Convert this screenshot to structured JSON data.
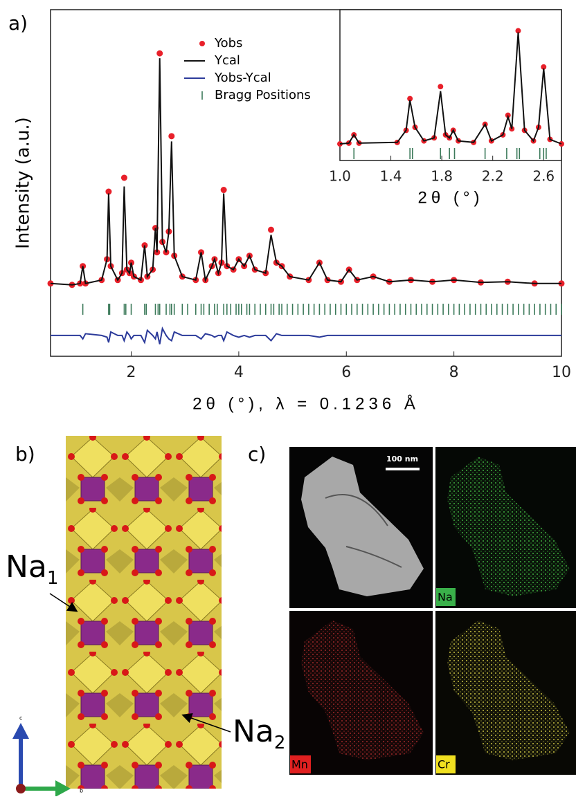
{
  "chart_data": [
    {
      "type": "line",
      "xlabel": "2θ (°), λ = 0.1236 Å",
      "ylabel": "Intensity (a.u.)",
      "xlim": [
        0.5,
        10
      ],
      "ylim": [
        0,
        100
      ],
      "xticks": [
        2,
        4,
        6,
        8,
        10
      ],
      "legend": "upper center",
      "x": [
        0.5,
        0.9,
        1.05,
        1.1,
        1.15,
        1.45,
        1.55,
        1.58,
        1.62,
        1.75,
        1.83,
        1.87,
        1.92,
        1.97,
        2.0,
        2.05,
        2.18,
        2.25,
        2.3,
        2.4,
        2.45,
        2.48,
        2.53,
        2.58,
        2.65,
        2.7,
        2.75,
        2.8,
        2.95,
        3.2,
        3.3,
        3.38,
        3.5,
        3.55,
        3.62,
        3.68,
        3.72,
        3.78,
        3.9,
        4.0,
        4.1,
        4.2,
        4.3,
        4.5,
        4.6,
        4.7,
        4.8,
        4.95,
        5.3,
        5.5,
        5.65,
        5.9,
        6.05,
        6.2,
        6.5,
        6.8,
        7.2,
        7.6,
        8.0,
        8.5,
        9.0,
        9.5,
        10
      ],
      "series": [
        {
          "name": "Yobs",
          "color": "#e8202a",
          "marker": "circle",
          "values": [
            21,
            20.6,
            21,
            26,
            21,
            22,
            28,
            47.5,
            26,
            22,
            24,
            51.5,
            25,
            24,
            27,
            23,
            22,
            32,
            23,
            25,
            37,
            30,
            87.4,
            33,
            30,
            36,
            63.5,
            29,
            23,
            22,
            30,
            22,
            26,
            28,
            24,
            27,
            48,
            26,
            25,
            28,
            26,
            29,
            25,
            24,
            36.5,
            27,
            26,
            23,
            22,
            27,
            22,
            21.5,
            25,
            22,
            23,
            21.5,
            22,
            21.5,
            22,
            21.3,
            21.5,
            21,
            21
          ]
        },
        {
          "name": "Ycal",
          "color": "#111111",
          "marker": "line",
          "values": [
            21,
            20.6,
            21,
            26,
            21,
            22,
            28,
            47,
            26,
            22,
            24,
            49,
            25,
            24,
            27,
            23,
            22,
            32,
            23,
            25,
            37,
            30,
            86,
            33,
            30,
            36,
            62,
            29,
            23,
            22,
            30,
            22,
            26,
            28,
            24,
            27,
            47,
            26,
            25,
            28,
            26,
            29,
            25,
            24,
            35,
            27,
            26,
            23,
            22,
            27,
            22,
            21.5,
            25,
            22,
            23,
            21.5,
            22,
            21.5,
            22,
            21.3,
            21.5,
            21,
            21
          ]
        },
        {
          "name": "Yobs-Ycal",
          "color": "#2b3a9a",
          "marker": "line",
          "values": [
            6,
            6,
            6,
            5,
            6.5,
            6,
            5.5,
            4,
            7,
            6,
            6,
            4.5,
            7,
            6,
            5,
            6,
            6,
            4,
            7.5,
            6,
            5,
            7,
            3.5,
            8,
            6,
            5,
            4.5,
            7,
            6,
            6,
            5,
            6.5,
            6,
            5.5,
            6,
            6,
            4.5,
            7,
            6,
            5.5,
            6,
            5.5,
            6,
            6,
            4.5,
            6.5,
            6,
            6,
            6,
            5.5,
            6,
            6,
            6,
            6,
            6,
            6,
            6,
            6,
            6,
            6,
            6,
            6,
            6
          ]
        },
        {
          "name": "Bragg Positions",
          "color": "#3c7a5a",
          "marker": "tick",
          "x": [
            1.1,
            1.58,
            1.6,
            1.87,
            1.9,
            2.0,
            2.25,
            2.28,
            2.45,
            2.5,
            2.53,
            2.65,
            2.72,
            2.75,
            2.8,
            2.95,
            3.05,
            3.2,
            3.3,
            3.35,
            3.45,
            3.55,
            3.6,
            3.72,
            3.78,
            3.85,
            3.95,
            4.0,
            4.05,
            4.15,
            4.2,
            4.3,
            4.4,
            4.5,
            4.6,
            4.65,
            4.75,
            4.8,
            4.9,
            5.0,
            5.1,
            5.2,
            5.3,
            5.4,
            5.5,
            5.6,
            5.7,
            5.8,
            5.9,
            6.0,
            6.1,
            6.2,
            6.3,
            6.4,
            6.5,
            6.6,
            6.7,
            6.8,
            6.9,
            7.0,
            7.1,
            7.2,
            7.3,
            7.4,
            7.5,
            7.6,
            7.7,
            7.8,
            7.9,
            8.0,
            8.1,
            8.2,
            8.3,
            8.4,
            8.5,
            8.6,
            8.7,
            8.8,
            8.9,
            9.0,
            9.1,
            9.2,
            9.3,
            9.4,
            9.5,
            9.6,
            9.7,
            9.8,
            9.9,
            10
          ]
        }
      ]
    },
    {
      "type": "line",
      "xlabel": "2θ (°)",
      "xlim": [
        1.0,
        2.74
      ],
      "ylim": [
        0,
        100
      ],
      "xticks": [
        {
          "value": 1,
          "label": "1.0"
        },
        1.4,
        1.8,
        2.2,
        2.6
      ],
      "x": [
        1.0,
        1.07,
        1.11,
        1.15,
        1.45,
        1.52,
        1.55,
        1.59,
        1.66,
        1.74,
        1.79,
        1.83,
        1.86,
        1.89,
        1.93,
        2.05,
        2.14,
        2.19,
        2.28,
        2.32,
        2.35,
        2.4,
        2.45,
        2.52,
        2.56,
        2.6,
        2.65,
        2.74
      ],
      "series": [
        {
          "color": "#e8202a",
          "marker": "circle",
          "values": [
            11,
            11.5,
            17,
            11.5,
            12,
            20,
            41,
            22,
            13,
            15,
            49,
            17,
            15,
            20,
            13,
            12,
            24,
            13,
            17,
            30,
            21,
            86,
            20,
            13,
            22,
            62,
            14,
            11
          ]
        },
        {
          "color": "#111111",
          "marker": "line",
          "values": [
            11,
            11.5,
            17,
            11.5,
            12,
            20,
            40,
            22,
            13,
            15,
            46,
            17,
            15,
            20,
            13,
            12,
            24,
            13,
            17,
            29,
            21,
            85,
            20,
            13,
            22,
            61,
            14,
            11
          ]
        },
        {
          "color": "#3c7a5a",
          "marker": "tick",
          "x": [
            1.11,
            1.55,
            1.57,
            1.79,
            1.86,
            1.9,
            2.14,
            2.31,
            2.39,
            2.41,
            2.57,
            2.6,
            2.62
          ]
        }
      ]
    }
  ],
  "panel_labels": [
    "a)",
    "b)",
    "c)"
  ],
  "structure": {
    "sites": [
      {
        "label": "Na",
        "subscript": "1"
      },
      {
        "label": "Na",
        "subscript": "2"
      }
    ],
    "axes": [
      "c",
      "b"
    ]
  },
  "eds": {
    "scale_bar": "100 nm",
    "maps": [
      "Na",
      "Mn",
      "Cr"
    ]
  }
}
